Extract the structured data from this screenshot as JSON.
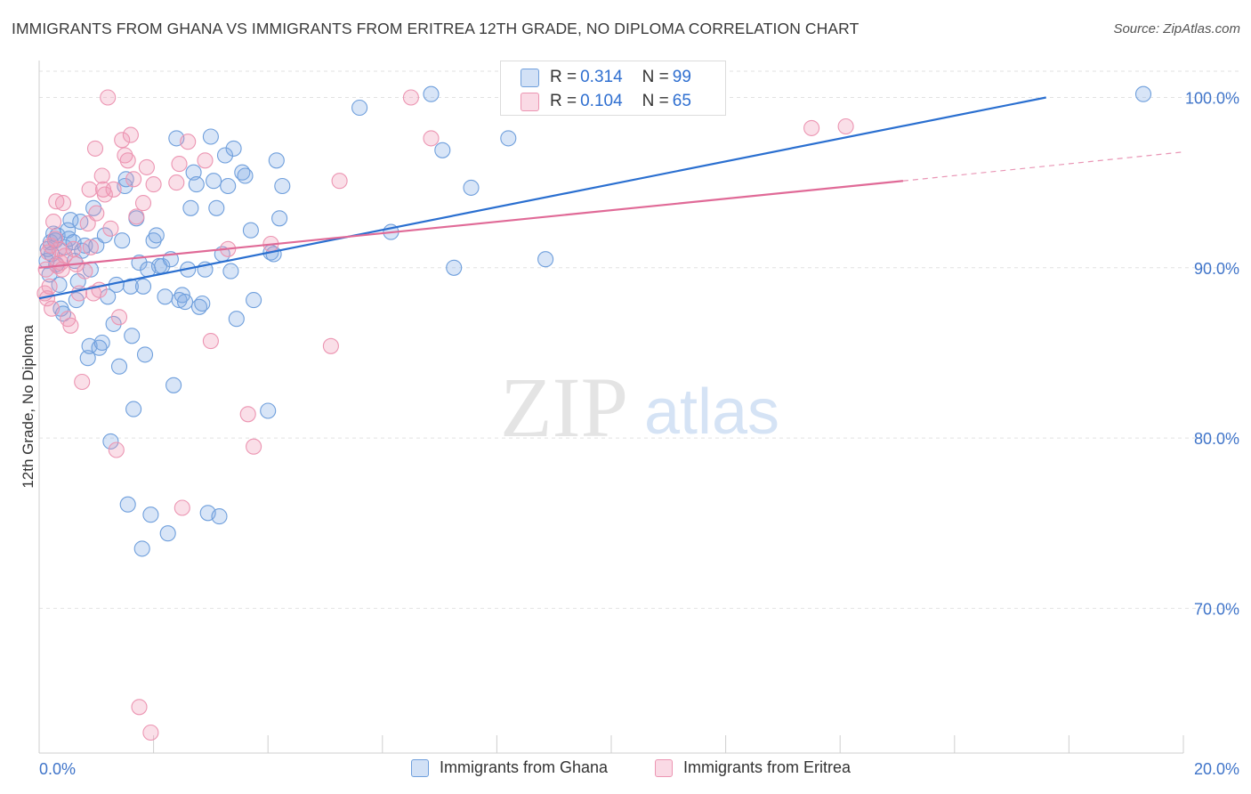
{
  "title": "IMMIGRANTS FROM GHANA VS IMMIGRANTS FROM ERITREA 12TH GRADE, NO DIPLOMA CORRELATION CHART",
  "source": "Source: ZipAtlas.com",
  "watermark": {
    "zip": "ZIP",
    "atlas": "atlas"
  },
  "colors": {
    "ghana_fill": "rgba(125,170,230,0.30)",
    "ghana_stroke": "#6f9fdc",
    "ghana_line": "#2a6fd0",
    "eritrea_fill": "rgba(240,150,180,0.30)",
    "eritrea_stroke": "#ec95b2",
    "eritrea_line": "#e06a97",
    "axis_label": "#3f74c9",
    "grid": "#e2e2e2"
  },
  "stats_legend": {
    "ghana": {
      "r_label": "R = ",
      "r_value": "0.314",
      "n_label": "N = ",
      "n_value": "99"
    },
    "eritrea": {
      "r_label": "R = ",
      "r_value": "0.104",
      "n_label": "N = ",
      "n_value": "65"
    }
  },
  "chart_data": {
    "type": "scatter",
    "title": "IMMIGRANTS FROM GHANA VS IMMIGRANTS FROM ERITREA 12TH GRADE, NO DIPLOMA CORRELATION CHART",
    "xlabel": "",
    "ylabel": "12th Grade, No Diploma",
    "xlim": [
      0,
      20
    ],
    "ylim": [
      61.5,
      103
    ],
    "x_tick_labels": [
      {
        "value": 0,
        "label": "0.0%"
      },
      {
        "value": 20,
        "label": "20.0%"
      }
    ],
    "y_tick_labels": [
      {
        "value": 100,
        "label": "100.0%"
      },
      {
        "value": 90,
        "label": "90.0%"
      },
      {
        "value": 80,
        "label": "80.0%"
      },
      {
        "value": 70,
        "label": "70.0%"
      }
    ],
    "legend": [
      "Immigrants from Ghana",
      "Immigrants from Eritrea"
    ],
    "series": [
      {
        "name": "Immigrants from Ghana",
        "trendline": {
          "x": [
            0,
            17.6
          ],
          "y": [
            88.2,
            100.0
          ],
          "dashed_extension": false
        },
        "points": [
          [
            0.13,
            90.4
          ],
          [
            0.15,
            91.1
          ],
          [
            0.18,
            89.6
          ],
          [
            0.2,
            91.5
          ],
          [
            0.22,
            90.8
          ],
          [
            0.25,
            92.0
          ],
          [
            0.28,
            91.6
          ],
          [
            0.3,
            90.2
          ],
          [
            0.32,
            91.9
          ],
          [
            0.35,
            89.0
          ],
          [
            0.38,
            87.6
          ],
          [
            0.42,
            87.3
          ],
          [
            0.45,
            91.2
          ],
          [
            0.5,
            92.2
          ],
          [
            0.52,
            91.7
          ],
          [
            0.55,
            92.8
          ],
          [
            0.6,
            91.5
          ],
          [
            0.62,
            90.4
          ],
          [
            0.65,
            88.1
          ],
          [
            0.68,
            89.2
          ],
          [
            0.72,
            92.7
          ],
          [
            0.75,
            91.0
          ],
          [
            0.8,
            91.3
          ],
          [
            0.85,
            84.7
          ],
          [
            0.88,
            85.4
          ],
          [
            0.9,
            89.9
          ],
          [
            0.95,
            93.5
          ],
          [
            1.0,
            91.3
          ],
          [
            1.05,
            85.3
          ],
          [
            1.1,
            85.6
          ],
          [
            1.15,
            91.9
          ],
          [
            1.2,
            88.3
          ],
          [
            1.25,
            79.8
          ],
          [
            1.3,
            86.7
          ],
          [
            1.35,
            89.0
          ],
          [
            1.4,
            84.2
          ],
          [
            1.45,
            91.6
          ],
          [
            1.5,
            94.8
          ],
          [
            1.52,
            95.2
          ],
          [
            1.55,
            76.1
          ],
          [
            1.6,
            88.9
          ],
          [
            1.62,
            86.0
          ],
          [
            1.65,
            81.7
          ],
          [
            1.7,
            92.9
          ],
          [
            1.75,
            90.3
          ],
          [
            1.8,
            73.5
          ],
          [
            1.82,
            88.9
          ],
          [
            1.85,
            84.9
          ],
          [
            1.9,
            89.9
          ],
          [
            1.95,
            75.5
          ],
          [
            2.0,
            91.6
          ],
          [
            2.05,
            91.9
          ],
          [
            2.1,
            90.1
          ],
          [
            2.15,
            90.1
          ],
          [
            2.2,
            88.3
          ],
          [
            2.25,
            74.4
          ],
          [
            2.3,
            90.5
          ],
          [
            2.35,
            83.1
          ],
          [
            2.4,
            97.6
          ],
          [
            2.45,
            88.1
          ],
          [
            2.5,
            88.4
          ],
          [
            2.55,
            88.0
          ],
          [
            2.6,
            89.9
          ],
          [
            2.65,
            93.5
          ],
          [
            2.7,
            95.6
          ],
          [
            2.75,
            94.9
          ],
          [
            2.8,
            87.7
          ],
          [
            2.85,
            87.9
          ],
          [
            2.9,
            89.9
          ],
          [
            2.95,
            75.6
          ],
          [
            3.0,
            97.7
          ],
          [
            3.05,
            95.1
          ],
          [
            3.1,
            93.5
          ],
          [
            3.15,
            75.4
          ],
          [
            3.2,
            90.8
          ],
          [
            3.25,
            96.6
          ],
          [
            3.3,
            94.8
          ],
          [
            3.35,
            89.8
          ],
          [
            3.4,
            97.0
          ],
          [
            3.45,
            87.0
          ],
          [
            3.55,
            95.6
          ],
          [
            3.6,
            95.4
          ],
          [
            3.7,
            92.2
          ],
          [
            3.75,
            88.1
          ],
          [
            4.0,
            81.6
          ],
          [
            4.05,
            90.9
          ],
          [
            4.1,
            90.8
          ],
          [
            4.15,
            96.3
          ],
          [
            4.2,
            92.9
          ],
          [
            4.25,
            94.8
          ],
          [
            5.6,
            99.4
          ],
          [
            6.15,
            92.1
          ],
          [
            6.85,
            100.2
          ],
          [
            7.05,
            96.9
          ],
          [
            7.25,
            90.0
          ],
          [
            7.55,
            94.7
          ],
          [
            8.2,
            97.6
          ],
          [
            8.85,
            90.5
          ],
          [
            19.3,
            100.2
          ]
        ]
      },
      {
        "name": "Immigrants from Eritrea",
        "trendline": {
          "x": [
            0,
            15.1
          ],
          "y": [
            90.0,
            95.1
          ],
          "dashed_extension": true,
          "dashed_to": [
            20.0,
            96.8
          ]
        },
        "points": [
          [
            0.1,
            88.5
          ],
          [
            0.12,
            89.9
          ],
          [
            0.14,
            88.2
          ],
          [
            0.16,
            90.9
          ],
          [
            0.18,
            88.9
          ],
          [
            0.2,
            91.3
          ],
          [
            0.22,
            87.6
          ],
          [
            0.25,
            92.7
          ],
          [
            0.28,
            91.7
          ],
          [
            0.3,
            93.9
          ],
          [
            0.32,
            90.1
          ],
          [
            0.35,
            91.1
          ],
          [
            0.38,
            90.3
          ],
          [
            0.4,
            89.9
          ],
          [
            0.42,
            93.8
          ],
          [
            0.45,
            90.7
          ],
          [
            0.5,
            87.0
          ],
          [
            0.55,
            86.6
          ],
          [
            0.6,
            91.1
          ],
          [
            0.65,
            90.2
          ],
          [
            0.7,
            88.5
          ],
          [
            0.75,
            83.3
          ],
          [
            0.8,
            89.8
          ],
          [
            0.85,
            92.6
          ],
          [
            0.88,
            94.6
          ],
          [
            0.9,
            91.2
          ],
          [
            0.95,
            88.5
          ],
          [
            0.98,
            97.0
          ],
          [
            1.0,
            93.2
          ],
          [
            1.05,
            88.7
          ],
          [
            1.1,
            95.4
          ],
          [
            1.12,
            94.6
          ],
          [
            1.15,
            94.3
          ],
          [
            1.2,
            100.0
          ],
          [
            1.25,
            92.3
          ],
          [
            1.3,
            94.6
          ],
          [
            1.35,
            79.3
          ],
          [
            1.4,
            87.1
          ],
          [
            1.45,
            97.5
          ],
          [
            1.5,
            96.6
          ],
          [
            1.55,
            96.3
          ],
          [
            1.6,
            97.8
          ],
          [
            1.65,
            95.2
          ],
          [
            1.7,
            93.0
          ],
          [
            1.75,
            64.2
          ],
          [
            1.82,
            93.8
          ],
          [
            1.88,
            95.9
          ],
          [
            1.95,
            62.7
          ],
          [
            2.0,
            94.9
          ],
          [
            2.4,
            95.0
          ],
          [
            2.45,
            96.1
          ],
          [
            2.5,
            75.9
          ],
          [
            2.6,
            97.4
          ],
          [
            2.9,
            96.3
          ],
          [
            3.0,
            85.7
          ],
          [
            3.3,
            91.1
          ],
          [
            3.65,
            81.4
          ],
          [
            3.75,
            79.5
          ],
          [
            4.05,
            91.4
          ],
          [
            5.1,
            85.4
          ],
          [
            5.25,
            95.1
          ],
          [
            6.5,
            100.0
          ],
          [
            6.85,
            97.6
          ],
          [
            13.5,
            98.2
          ],
          [
            14.1,
            98.3
          ]
        ]
      }
    ]
  }
}
